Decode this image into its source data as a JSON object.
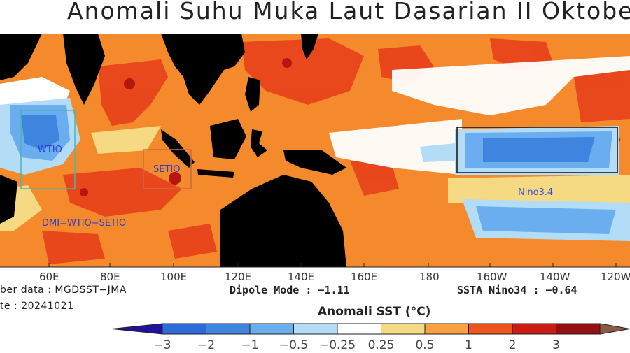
{
  "title": "Anomali Suhu Muka Laut Dasarian II Oktober",
  "longitude_labels": [
    "60E",
    "80E",
    "100E",
    "120E",
    "140E",
    "160E",
    "180",
    "160W",
    "140W",
    "120W"
  ],
  "regions": [
    {
      "name": "WTIO",
      "color": "#2a3fd0",
      "box_color": "#4fb3b3"
    },
    {
      "name": "SETIO",
      "color": "#2a3fd0",
      "box_color": "#c96a4a"
    },
    {
      "name": "Nino3.4",
      "color": "#3a4fd8",
      "box_color": "#111111"
    }
  ],
  "dmi_formula": "DMI=WTIO−SETIO",
  "info": {
    "source": "ber data : MGDSST−JMA",
    "date": "te : 20241021",
    "dipole_mode": "Dipole Mode : −1.11",
    "ssta_nino34": "SSTA Nino34 : −0.64"
  },
  "colorbar": {
    "title": "Anomali SST (°C)",
    "ticks": [
      "−3",
      "−2",
      "−1",
      "−0.5",
      "−0.25",
      "0.25",
      "0.5",
      "1",
      "2",
      "3"
    ],
    "colors": [
      "#2b6ad8",
      "#3f85e0",
      "#6aaef0",
      "#b3dcf7",
      "#ffffff",
      "#f5d983",
      "#f9a23f",
      "#f0541e",
      "#cc1b14",
      "#951010"
    ],
    "low_color": "#22129a",
    "high_color": "#8a5a48"
  },
  "palette": {
    "land": "#000000",
    "warm1": "#f58a2c",
    "warm2": "#e8431b",
    "cool": "#4f86e0"
  }
}
